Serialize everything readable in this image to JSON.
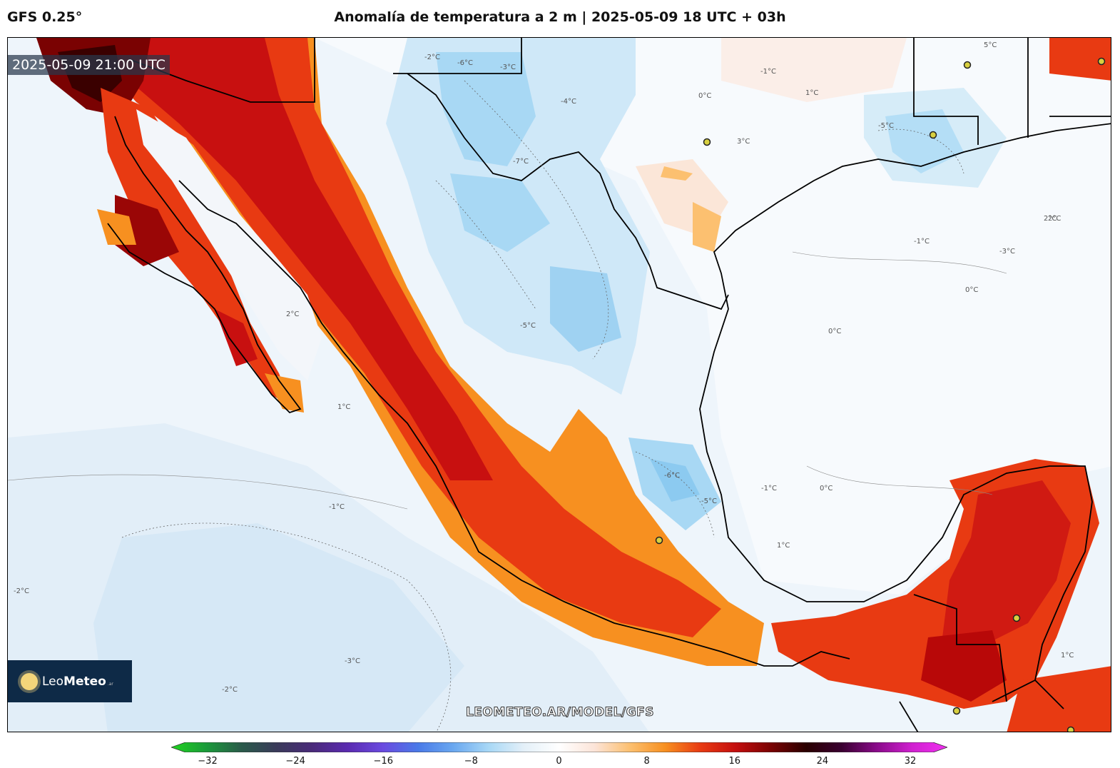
{
  "header": {
    "model": "GFS 0.25°",
    "title": "Anomalía de temperatura a 2 m | 2025-05-09 18 UTC + 03h"
  },
  "map": {
    "timestamp": "2025-05-09 21:00 UTC",
    "watermark": "LEOMETEO.AR/MODEL/GFS",
    "logo": {
      "name": "Leo",
      "name_bold": "Meteo",
      "suffix": ".ar"
    },
    "contour_labels": [
      "-2°C",
      "-6°C",
      "-3°C",
      "-4°C",
      "-5°C",
      "-1°C",
      "0°C",
      "1°C",
      "2°C",
      "3°C",
      "-7°C",
      "5°C",
      "-5°C",
      "0°C",
      "-1°C",
      "-3°C",
      "2°C",
      "-1°C",
      "0°C",
      "1°C",
      "1°C",
      "-2°C",
      "-3°C",
      "-5°C",
      "-6°C",
      "0°C",
      "-1°C",
      "1°C",
      "2°C",
      "-2°C"
    ]
  },
  "colorbar": {
    "ticks": [
      "−32",
      "−24",
      "−16",
      "−8",
      "0",
      "8",
      "16",
      "24",
      "32"
    ],
    "colors": [
      "#1fd41f",
      "#1a9a3a",
      "#2a5a4a",
      "#3a3a5a",
      "#4a2a7a",
      "#5a2ab0",
      "#6a4ae0",
      "#4a7ae8",
      "#6aa8f0",
      "#a8d8f6",
      "#e4f0f8",
      "#ffffff",
      "#fce4d8",
      "#fcc070",
      "#f79020",
      "#e83a12",
      "#c40e0e",
      "#7a0202",
      "#2a0000",
      "#3a0030",
      "#8a0a8a",
      "#d020d0",
      "#f030f0"
    ]
  }
}
